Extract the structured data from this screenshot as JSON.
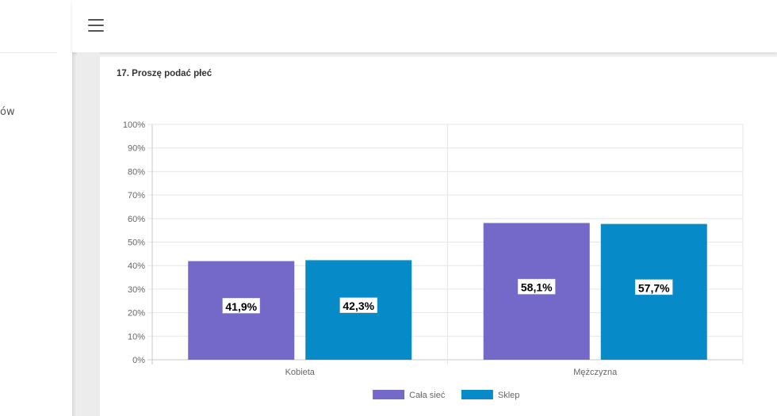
{
  "sidebar": {
    "item_fragment": "ów"
  },
  "header": {
    "menu_icon": "hamburger-icon"
  },
  "question": {
    "title": "17. Proszę podać płeć"
  },
  "colors": {
    "series1": "#7468c8",
    "series2": "#068ac8",
    "grid": "#e6e6e6",
    "axis_text": "#666666"
  },
  "chart_data": {
    "type": "bar",
    "title": "17. Proszę podać płeć",
    "categories": [
      "Kobieta",
      "Mężczyzna"
    ],
    "series": [
      {
        "name": "Cała sieć",
        "values": [
          41.9,
          58.1
        ],
        "labels": [
          "41,9%",
          "58,1%"
        ],
        "color": "#7468c8"
      },
      {
        "name": "Sklep",
        "values": [
          42.3,
          57.7
        ],
        "labels": [
          "42,3%",
          "57,7%"
        ],
        "color": "#068ac8"
      }
    ],
    "ylim": [
      0,
      100
    ],
    "yticks": [
      "0%",
      "10%",
      "20%",
      "30%",
      "40%",
      "50%",
      "60%",
      "70%",
      "80%",
      "90%",
      "100%"
    ],
    "grid": true,
    "legend": "bottom"
  }
}
